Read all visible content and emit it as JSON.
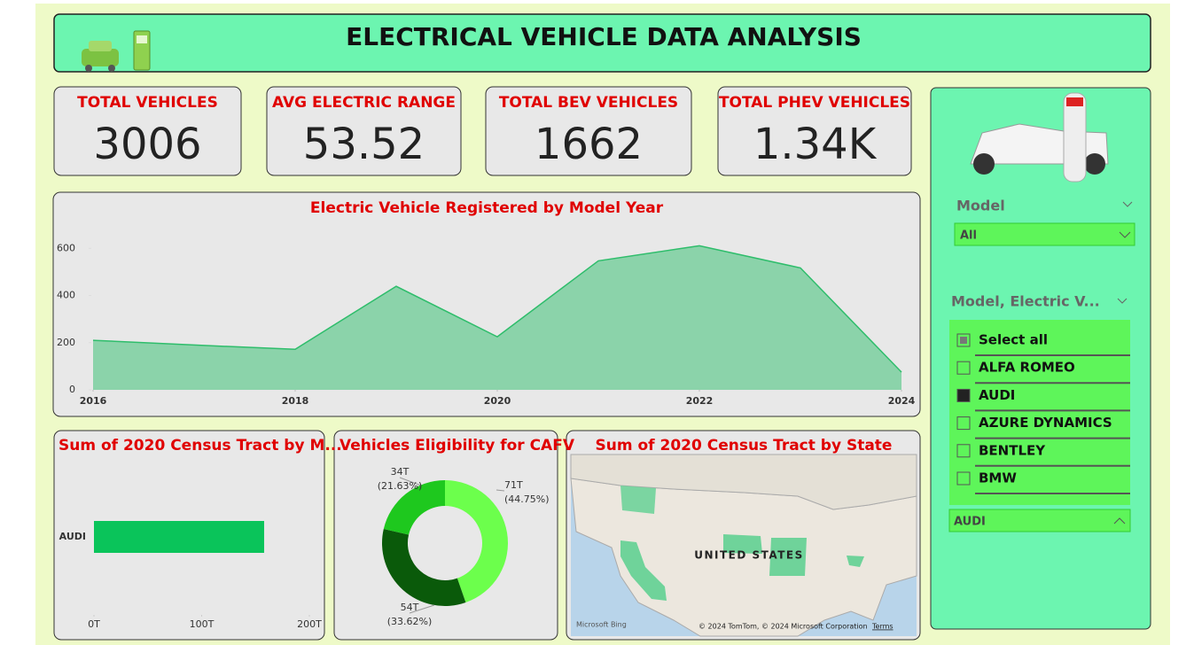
{
  "header": {
    "title": "ELECTRICAL VEHICLE DATA ANALYSIS"
  },
  "kpis": [
    {
      "label": "TOTAL VEHICLES",
      "value": "3006"
    },
    {
      "label": "AVG ELECTRIC RANGE",
      "value": "53.52"
    },
    {
      "label": "TOTAL BEV VEHICLES",
      "value": "1662"
    },
    {
      "label": "TOTAL PHEV VEHICLES",
      "value": "1.34K"
    }
  ],
  "chart_data": [
    {
      "type": "area",
      "title": "Electric Vehicle Registered by Model Year",
      "x": [
        2016,
        2017,
        2018,
        2019,
        2020,
        2021,
        2022,
        2023,
        2024
      ],
      "values": [
        210,
        190,
        172,
        439,
        225,
        547,
        611,
        517,
        75
      ],
      "color": "#2ebd6b",
      "xlim": [
        2016,
        2024
      ],
      "xticks": [
        2016,
        2018,
        2020,
        2022,
        2024
      ],
      "ylim": [
        0,
        650
      ],
      "yticks": [
        0,
        200,
        400,
        600
      ]
    },
    {
      "type": "bar",
      "orientation": "horizontal",
      "title": "Sum of 2020 Census Tract by M...",
      "categories": [
        "AUDI"
      ],
      "values": [
        158
      ],
      "color": "#0ac45a",
      "xlim": [
        0,
        200
      ],
      "xticks": [
        {
          "value": 0,
          "label": "0T"
        },
        {
          "value": 100,
          "label": "100T"
        },
        {
          "value": 200,
          "label": "200T"
        }
      ]
    },
    {
      "type": "donut",
      "title": "Vehicles Eligibility for CAFV",
      "values": [
        71,
        54,
        34
      ],
      "value_labels": [
        "71T",
        "54T",
        "34T"
      ],
      "percent_labels": [
        "(44.75%)",
        "(33.62%)",
        "(21.63%)"
      ],
      "colors": [
        "#6cff4c",
        "#0a5a0a",
        "#1ec81e"
      ]
    }
  ],
  "map": {
    "title": "Sum of 2020 Census Tract by State",
    "country": "UNITED STATES",
    "logo": "Microsoft Bing",
    "copyright": "© 2024 TomTom, © 2024 Microsoft Corporation",
    "terms": "Terms"
  },
  "slicers": [
    {
      "label": "Model",
      "selection": "All"
    },
    {
      "label": "Model, Electric V...",
      "items": [
        "Select all",
        "ALFA ROMEO",
        "AUDI",
        "AZURE DYNAMICS",
        "BENTLEY",
        "BMW"
      ],
      "selection": "AUDI"
    }
  ]
}
